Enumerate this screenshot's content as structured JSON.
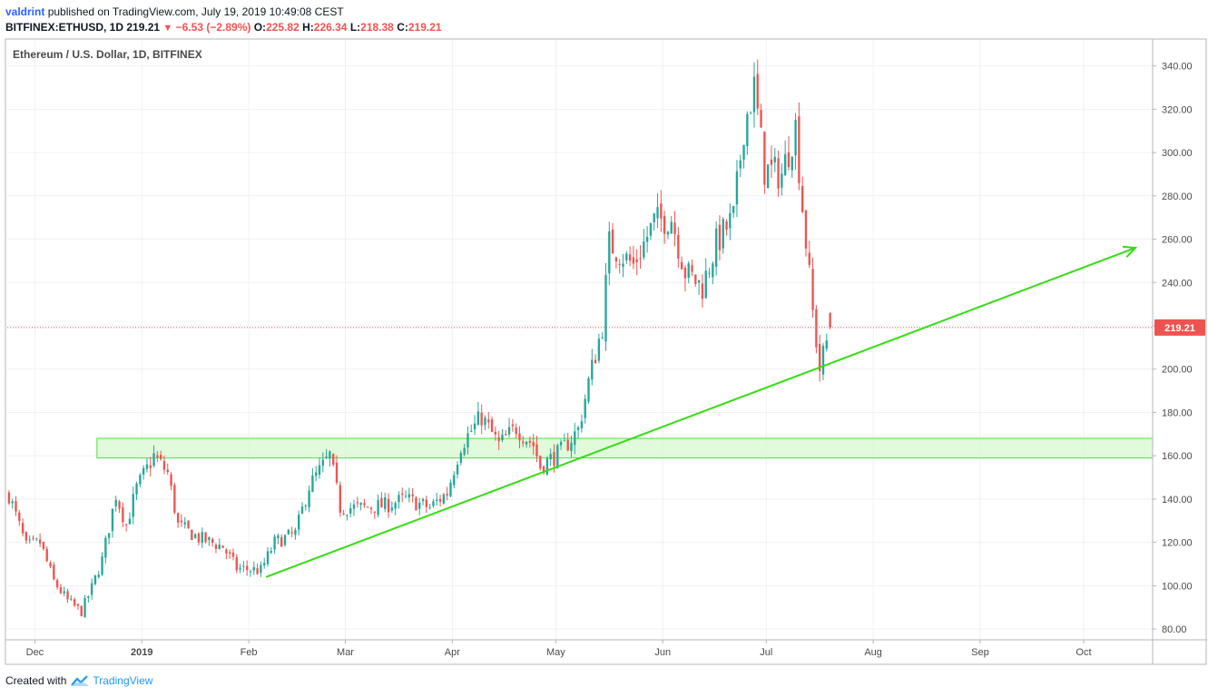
{
  "header": {
    "author": "valdrint",
    "published_text": "published on TradingView.com, July 19, 2019 10:49:08 CEST",
    "symbol": "BITFINEX:ETHUSD, 1D",
    "last": "219.21",
    "change": "−6.53 (−2.89%)",
    "open_label": "O:",
    "open": "225.82",
    "high_label": "H:",
    "high": "226.34",
    "low_label": "L:",
    "low": "218.38",
    "close_label": "C:",
    "close": "219.21"
  },
  "footer": {
    "created_with": "Created with",
    "brand": "TradingView"
  },
  "colors": {
    "up": "#26a69a",
    "down": "#ef5350",
    "trendline": "#33dd11",
    "zone_fill": "#d7f8cf",
    "zone_border": "#55dd44",
    "price_line": "#ef5350",
    "grid": "#eef1f5",
    "axis_text": "#4a4a4a"
  },
  "chart_data": {
    "type": "candlestick",
    "title": "Ethereum / U.S. Dollar, 1D, BITFINEX",
    "ylim": [
      75,
      352
    ],
    "y_ticks": [
      "80.00",
      "100.00",
      "120.00",
      "140.00",
      "160.00",
      "180.00",
      "200.00",
      "220.00",
      "240.00",
      "260.00",
      "280.00",
      "300.00",
      "320.00",
      "340.00"
    ],
    "x_range": [
      "2018-11-23",
      "2019-10-21"
    ],
    "x_ticks": [
      {
        "label": "Dec",
        "date": "2018-12-01"
      },
      {
        "label": "2019",
        "date": "2019-01-01"
      },
      {
        "label": "Feb",
        "date": "2019-02-01"
      },
      {
        "label": "Mar",
        "date": "2019-03-01"
      },
      {
        "label": "Apr",
        "date": "2019-04-01"
      },
      {
        "label": "May",
        "date": "2019-05-01"
      },
      {
        "label": "Jun",
        "date": "2019-06-01"
      },
      {
        "label": "Jul",
        "date": "2019-07-01"
      },
      {
        "label": "Aug",
        "date": "2019-08-01"
      },
      {
        "label": "Sep",
        "date": "2019-09-01"
      },
      {
        "label": "Oct",
        "date": "2019-10-01"
      }
    ],
    "last_price": 219.21,
    "last_price_label": "219.21",
    "close_path": [
      {
        "date": "2018-11-23",
        "close": 142
      },
      {
        "date": "2018-11-28",
        "close": 118
      },
      {
        "date": "2018-12-02",
        "close": 120
      },
      {
        "date": "2018-12-06",
        "close": 102
      },
      {
        "date": "2018-12-10",
        "close": 93
      },
      {
        "date": "2018-12-14",
        "close": 88
      },
      {
        "date": "2018-12-17",
        "close": 99
      },
      {
        "date": "2018-12-20",
        "close": 112
      },
      {
        "date": "2018-12-24",
        "close": 142
      },
      {
        "date": "2018-12-27",
        "close": 128
      },
      {
        "date": "2018-12-30",
        "close": 145
      },
      {
        "date": "2019-01-04",
        "close": 160
      },
      {
        "date": "2019-01-08",
        "close": 152
      },
      {
        "date": "2019-01-11",
        "close": 128
      },
      {
        "date": "2019-01-17",
        "close": 122
      },
      {
        "date": "2019-01-24",
        "close": 118
      },
      {
        "date": "2019-01-28",
        "close": 108
      },
      {
        "date": "2019-02-04",
        "close": 107
      },
      {
        "date": "2019-02-08",
        "close": 120
      },
      {
        "date": "2019-02-14",
        "close": 124
      },
      {
        "date": "2019-02-18",
        "close": 146
      },
      {
        "date": "2019-02-24",
        "close": 160
      },
      {
        "date": "2019-02-27",
        "close": 136
      },
      {
        "date": "2019-03-05",
        "close": 136
      },
      {
        "date": "2019-03-12",
        "close": 137
      },
      {
        "date": "2019-03-18",
        "close": 140
      },
      {
        "date": "2019-03-25",
        "close": 136
      },
      {
        "date": "2019-03-30",
        "close": 143
      },
      {
        "date": "2019-04-03",
        "close": 165
      },
      {
        "date": "2019-04-09",
        "close": 178
      },
      {
        "date": "2019-04-14",
        "close": 165
      },
      {
        "date": "2019-04-19",
        "close": 173
      },
      {
        "date": "2019-04-24",
        "close": 165
      },
      {
        "date": "2019-04-26",
        "close": 155
      },
      {
        "date": "2019-05-02",
        "close": 162
      },
      {
        "date": "2019-05-07",
        "close": 172
      },
      {
        "date": "2019-05-10",
        "close": 194
      },
      {
        "date": "2019-05-14",
        "close": 220
      },
      {
        "date": "2019-05-16",
        "close": 258
      },
      {
        "date": "2019-05-23",
        "close": 248
      },
      {
        "date": "2019-05-29",
        "close": 268
      },
      {
        "date": "2019-06-03",
        "close": 270
      },
      {
        "date": "2019-06-07",
        "close": 245
      },
      {
        "date": "2019-06-12",
        "close": 238
      },
      {
        "date": "2019-06-16",
        "close": 258
      },
      {
        "date": "2019-06-21",
        "close": 270
      },
      {
        "date": "2019-06-24",
        "close": 312
      },
      {
        "date": "2019-06-27",
        "close": 330
      },
      {
        "date": "2019-06-30",
        "close": 292
      },
      {
        "date": "2019-07-05",
        "close": 290
      },
      {
        "date": "2019-07-09",
        "close": 312
      },
      {
        "date": "2019-07-11",
        "close": 275
      },
      {
        "date": "2019-07-14",
        "close": 226
      },
      {
        "date": "2019-07-16",
        "close": 200
      },
      {
        "date": "2019-07-19",
        "close": 219.21
      }
    ],
    "annotations": [
      {
        "type": "trendline",
        "from": {
          "date": "2019-02-06",
          "price": 104
        },
        "to": {
          "date": "2019-10-16",
          "price": 256
        }
      },
      {
        "type": "zone",
        "from_date": "2018-12-19",
        "to_date": "2019-10-21",
        "low": 159,
        "high": 168
      }
    ]
  }
}
